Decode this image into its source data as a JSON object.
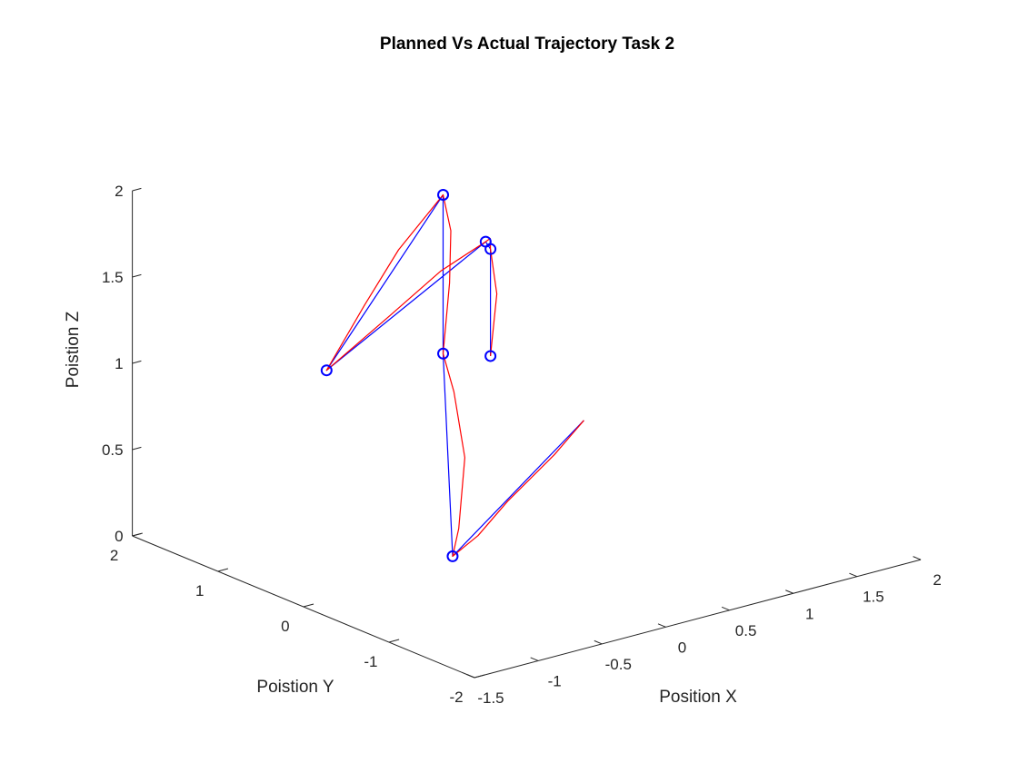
{
  "chart_data": {
    "type": "line3d",
    "title": "Planned Vs Actual Trajectory Task 2",
    "xlabel": "Position X",
    "ylabel": "Poistion Y",
    "zlabel": "Poistion Z",
    "xlim": [
      -1.5,
      2
    ],
    "ylim": [
      -2,
      2
    ],
    "zlim": [
      0,
      2
    ],
    "xticks": [
      "-1.5",
      "-1",
      "-0.5",
      "0",
      "0.5",
      "1",
      "1.5",
      "2"
    ],
    "yticks": [
      "-2",
      "-1",
      "0",
      "1",
      "2"
    ],
    "zticks": [
      "0",
      "0.5",
      "1",
      "1.5",
      "2"
    ],
    "grid": false,
    "series": [
      {
        "role": "planned",
        "color": "#0000ff",
        "marker": "none",
        "points": [
          [
            0.8,
            0.15,
            0.6
          ],
          [
            -0.9,
            -0.85,
            0.35
          ],
          [
            0.3,
            1.05,
            0.9
          ],
          [
            0.3,
            1.05,
            1.82
          ],
          [
            -1.05,
            0.4,
            1.2
          ],
          [
            0.6,
            1.0,
            1.5
          ],
          [
            -0.1,
            -0.1,
            1.82
          ],
          [
            -0.1,
            -0.1,
            1.2
          ]
        ]
      },
      {
        "role": "actual",
        "color": "#ff0000",
        "marker": "none",
        "points": [
          [
            0.8,
            0.15,
            0.6
          ],
          [
            0.4,
            -0.1,
            0.53
          ],
          [
            -0.2,
            -0.45,
            0.45
          ],
          [
            -0.6,
            -0.7,
            0.38
          ],
          [
            -0.9,
            -0.85,
            0.35
          ],
          [
            -0.55,
            -0.4,
            0.35
          ],
          [
            -0.1,
            0.2,
            0.55
          ],
          [
            0.15,
            0.7,
            0.78
          ],
          [
            0.3,
            1.05,
            0.9
          ],
          [
            0.35,
            1.05,
            1.3
          ],
          [
            0.36,
            1.05,
            1.6
          ],
          [
            0.3,
            1.05,
            1.82
          ],
          [
            -0.15,
            0.9,
            1.62
          ],
          [
            -0.55,
            0.7,
            1.42
          ],
          [
            -1.05,
            0.4,
            1.2
          ],
          [
            -0.35,
            0.7,
            1.32
          ],
          [
            0.15,
            0.85,
            1.45
          ],
          [
            0.6,
            1.0,
            1.5
          ],
          [
            0.3,
            0.5,
            1.68
          ],
          [
            -0.1,
            -0.1,
            1.82
          ],
          [
            -0.05,
            -0.1,
            1.55
          ],
          [
            -0.1,
            -0.1,
            1.2
          ]
        ]
      },
      {
        "role": "waypoints",
        "color": "#0000ff",
        "marker": "circle",
        "points": [
          [
            -0.9,
            -0.85,
            0.35
          ],
          [
            0.3,
            1.05,
            0.9
          ],
          [
            0.3,
            1.05,
            1.82
          ],
          [
            -1.05,
            0.4,
            1.2
          ],
          [
            0.6,
            1.0,
            1.5
          ],
          [
            -0.1,
            -0.1,
            1.82
          ],
          [
            -0.1,
            -0.1,
            1.2
          ]
        ]
      }
    ]
  }
}
